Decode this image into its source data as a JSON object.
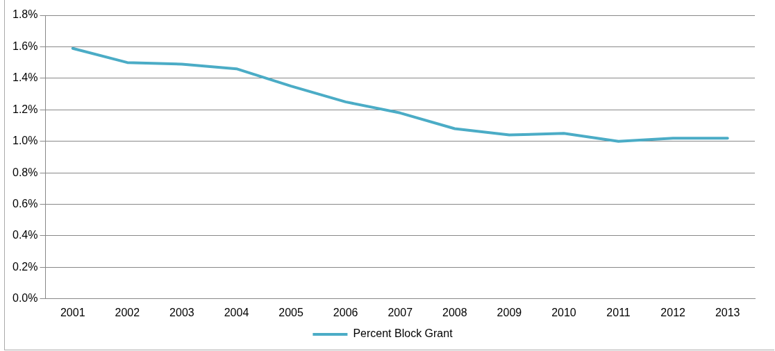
{
  "chart_data": {
    "type": "line",
    "categories": [
      "2001",
      "2002",
      "2003",
      "2004",
      "2005",
      "2006",
      "2007",
      "2008",
      "2009",
      "2010",
      "2011",
      "2012",
      "2013"
    ],
    "series": [
      {
        "name": "Percent Block Grant",
        "color": "#4bacc6",
        "values": [
          1.59,
          1.5,
          1.49,
          1.46,
          1.35,
          1.25,
          1.18,
          1.08,
          1.04,
          1.05,
          1.0,
          1.02,
          1.02
        ]
      }
    ],
    "ylim": [
      0,
      1.8
    ],
    "yticks": [
      {
        "value": 0,
        "label": "0.0%"
      },
      {
        "value": 0.2,
        "label": "0.2%"
      },
      {
        "value": 0.4,
        "label": "0.4%"
      },
      {
        "value": 0.6,
        "label": "0.6%"
      },
      {
        "value": 0.8,
        "label": "0.8%"
      },
      {
        "value": 1.0,
        "label": "1.0%"
      },
      {
        "value": 1.2,
        "label": "1.2%"
      },
      {
        "value": 1.4,
        "label": "1.4%"
      },
      {
        "value": 1.6,
        "label": "1.6%"
      },
      {
        "value": 1.8,
        "label": "1.8%"
      }
    ],
    "grid": "y",
    "legend": "bottom",
    "marker": "none",
    "line_style": "solid"
  }
}
